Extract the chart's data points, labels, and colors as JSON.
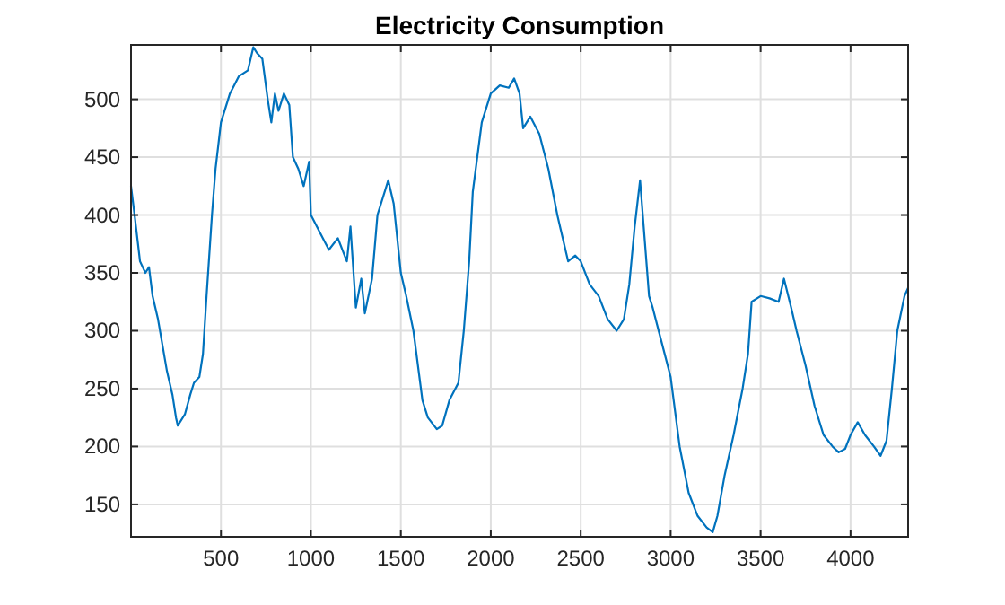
{
  "chart_data": {
    "type": "line",
    "title": "Electricity Consumption",
    "xlim": [
      0,
      4320
    ],
    "ylim": [
      122,
      547
    ],
    "xticks": [
      500,
      1000,
      1500,
      2000,
      2500,
      3000,
      3500,
      4000
    ],
    "yticks": [
      150,
      200,
      250,
      300,
      350,
      400,
      450,
      500
    ],
    "grid": true,
    "x": [
      0,
      20,
      50,
      80,
      100,
      120,
      150,
      200,
      230,
      250,
      260,
      300,
      330,
      350,
      380,
      400,
      420,
      450,
      470,
      500,
      550,
      600,
      650,
      680,
      700,
      730,
      760,
      780,
      800,
      820,
      850,
      880,
      900,
      930,
      960,
      990,
      1000,
      1050,
      1100,
      1150,
      1200,
      1220,
      1250,
      1280,
      1300,
      1340,
      1370,
      1400,
      1430,
      1460,
      1500,
      1530,
      1570,
      1620,
      1650,
      1700,
      1730,
      1770,
      1820,
      1850,
      1880,
      1900,
      1950,
      2000,
      2050,
      2100,
      2130,
      2160,
      2180,
      2220,
      2270,
      2320,
      2370,
      2400,
      2430,
      2470,
      2500,
      2550,
      2600,
      2650,
      2700,
      2740,
      2770,
      2800,
      2830,
      2850,
      2880,
      2900,
      2950,
      3000,
      3050,
      3100,
      3150,
      3200,
      3234,
      3260,
      3300,
      3350,
      3400,
      3430,
      3450,
      3500,
      3550,
      3600,
      3630,
      3670,
      3700,
      3750,
      3800,
      3850,
      3900,
      3934,
      3970,
      4000,
      4040,
      4080,
      4130,
      4167,
      4200,
      4230,
      4260,
      4300,
      4320
    ],
    "series": [
      {
        "color": "#0072bd",
        "values": [
          425,
          400,
          360,
          350,
          355,
          330,
          310,
          265,
          245,
          225,
          218,
          228,
          245,
          255,
          260,
          280,
          330,
          400,
          440,
          480,
          505,
          520,
          525,
          545,
          540,
          535,
          500,
          480,
          505,
          490,
          505,
          495,
          450,
          440,
          425,
          446,
          400,
          385,
          370,
          380,
          360,
          390,
          320,
          345,
          315,
          345,
          400,
          415,
          430,
          410,
          350,
          330,
          300,
          240,
          225,
          215,
          218,
          240,
          255,
          300,
          360,
          420,
          480,
          505,
          512,
          510,
          518,
          505,
          475,
          485,
          470,
          440,
          400,
          380,
          360,
          365,
          360,
          340,
          330,
          310,
          300,
          310,
          340,
          390,
          430,
          390,
          330,
          320,
          290,
          260,
          200,
          160,
          140,
          130,
          126,
          140,
          175,
          210,
          250,
          280,
          325,
          330,
          328,
          325,
          345,
          320,
          300,
          270,
          235,
          210,
          200,
          195,
          198,
          210,
          221,
          210,
          200,
          192,
          205,
          250,
          300,
          330,
          337
        ]
      }
    ]
  }
}
